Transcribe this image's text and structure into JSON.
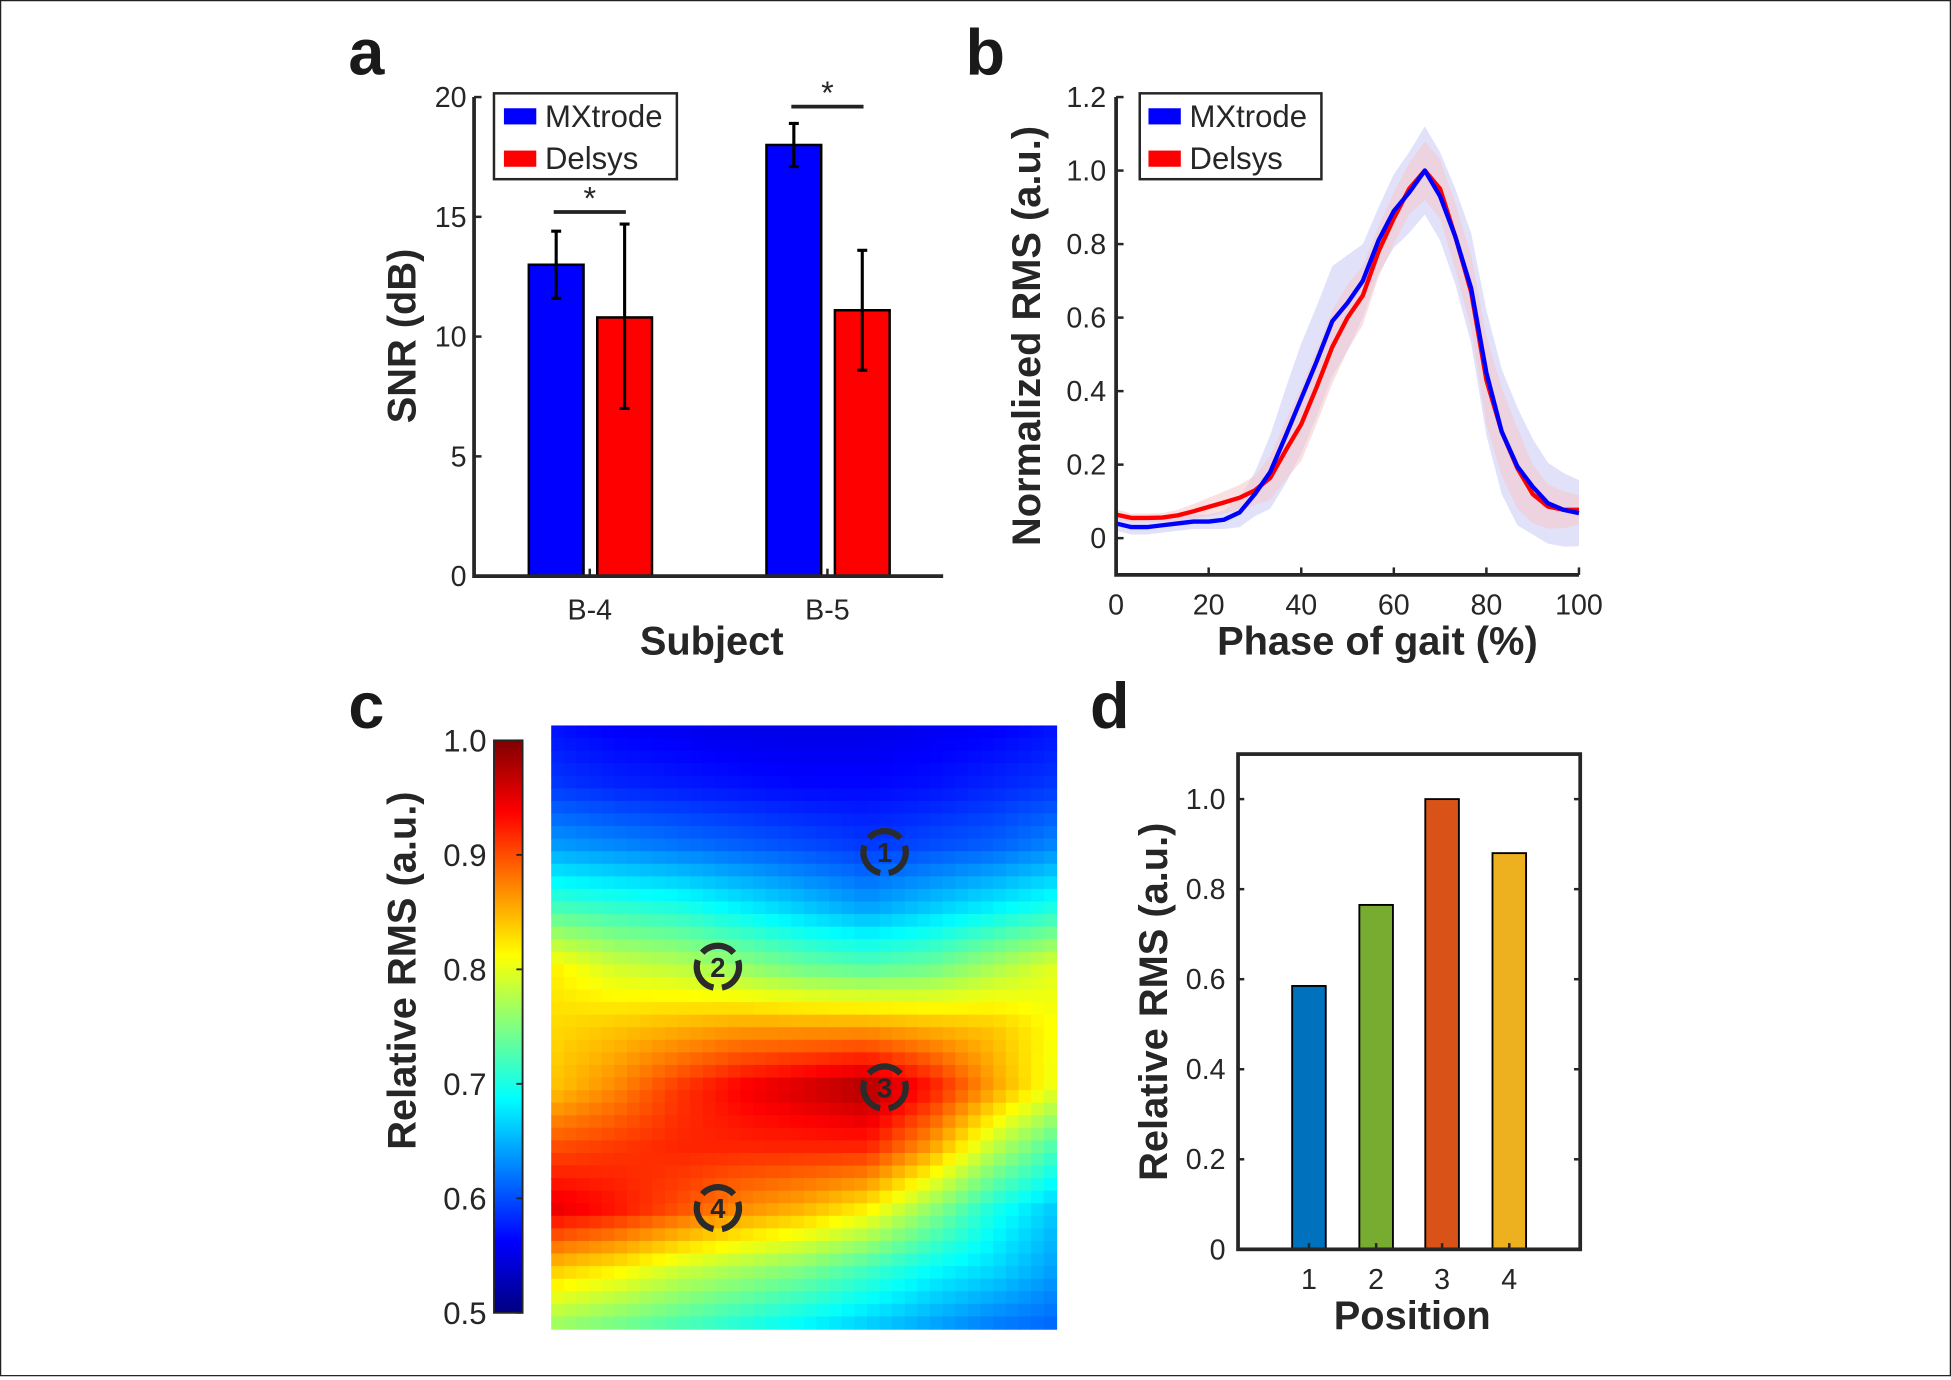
{
  "panel_labels": [
    "a",
    "b",
    "c",
    "d"
  ],
  "chart_data": [
    {
      "panel": "a",
      "type": "bar",
      "categories": [
        "B-4",
        "B-5"
      ],
      "series": [
        {
          "name": "MXtrode",
          "color": "#0000FF",
          "values": [
            13.0,
            18.0
          ],
          "err_low": [
            11.6,
            17.1
          ],
          "err_high": [
            14.4,
            18.9
          ]
        },
        {
          "name": "Delsys",
          "color": "#FF0000",
          "values": [
            10.8,
            11.1
          ],
          "err_low": [
            7.0,
            8.6
          ],
          "err_high": [
            14.7,
            13.6
          ]
        }
      ],
      "significance": [
        {
          "category": "B-4",
          "label": "*"
        },
        {
          "category": "B-5",
          "label": "*"
        }
      ],
      "xlabel": "Subject",
      "ylabel": "SNR (dB)",
      "ylim": [
        0,
        20
      ],
      "yticks": [
        0,
        5,
        10,
        15,
        20
      ],
      "ytick_labels": [
        "0",
        "5",
        "10",
        "15",
        "20"
      ],
      "legend": "top-left"
    },
    {
      "panel": "b",
      "type": "line",
      "x": [
        0,
        3.3,
        6.7,
        10,
        13.3,
        16.7,
        20,
        23.3,
        26.7,
        30,
        33.3,
        36.7,
        40,
        43.3,
        46.7,
        50,
        53.3,
        56.7,
        60,
        63.3,
        66.7,
        70,
        73.3,
        76.7,
        80,
        83.3,
        86.7,
        90,
        93.3,
        96.7,
        100
      ],
      "series": [
        {
          "name": "MXtrode",
          "color": "#0000FF",
          "band_color": "#C8C8F5",
          "values": [
            0.04,
            0.03,
            0.03,
            0.035,
            0.04,
            0.045,
            0.045,
            0.05,
            0.07,
            0.12,
            0.18,
            0.28,
            0.38,
            0.48,
            0.59,
            0.64,
            0.7,
            0.81,
            0.89,
            0.94,
            1.0,
            0.93,
            0.82,
            0.68,
            0.45,
            0.29,
            0.195,
            0.14,
            0.095,
            0.077,
            0.068
          ],
          "band_halfwidth": [
            0.02,
            0.02,
            0.02,
            0.02,
            0.02,
            0.02,
            0.02,
            0.025,
            0.04,
            0.06,
            0.1,
            0.13,
            0.15,
            0.15,
            0.15,
            0.13,
            0.1,
            0.09,
            0.1,
            0.11,
            0.12,
            0.12,
            0.13,
            0.15,
            0.17,
            0.17,
            0.16,
            0.13,
            0.11,
            0.1,
            0.09
          ]
        },
        {
          "name": "Delsys",
          "color": "#FF0000",
          "band_color": "#F5C8C8",
          "values": [
            0.064,
            0.055,
            0.055,
            0.056,
            0.062,
            0.073,
            0.085,
            0.097,
            0.11,
            0.13,
            0.164,
            0.24,
            0.31,
            0.41,
            0.52,
            0.6,
            0.66,
            0.78,
            0.87,
            0.95,
            1.0,
            0.95,
            0.82,
            0.67,
            0.43,
            0.29,
            0.19,
            0.12,
            0.086,
            0.077,
            0.077
          ],
          "band_halfwidth": [
            0.015,
            0.012,
            0.012,
            0.012,
            0.015,
            0.02,
            0.025,
            0.03,
            0.035,
            0.04,
            0.06,
            0.08,
            0.1,
            0.1,
            0.1,
            0.09,
            0.08,
            0.07,
            0.07,
            0.07,
            0.08,
            0.08,
            0.09,
            0.1,
            0.12,
            0.12,
            0.11,
            0.08,
            0.06,
            0.05,
            0.04
          ]
        }
      ],
      "xlabel": "Phase of gait (%)",
      "ylabel": "Normalized RMS (a.u.)",
      "xlim": [
        0,
        100
      ],
      "ylim": [
        -0.1,
        1.2
      ],
      "xticks": [
        0,
        20,
        40,
        60,
        80,
        100
      ],
      "xtick_labels": [
        "0",
        "20",
        "40",
        "60",
        "80",
        "100"
      ],
      "yticks": [
        0,
        0.2,
        0.4,
        0.6,
        0.8,
        1.0,
        1.2
      ],
      "ytick_labels": [
        "0",
        "0.2",
        "0.4",
        "0.6",
        "0.8",
        "1.0",
        "1.2"
      ],
      "legend": "top-left"
    },
    {
      "panel": "c",
      "type": "heatmap",
      "colormap": "jet",
      "clim": [
        0.5,
        1.0
      ],
      "colorbar_ticks": [
        0.5,
        0.6,
        0.7,
        0.8,
        0.9,
        1.0
      ],
      "colorbar_tick_labels": [
        "0.5",
        "0.6",
        "0.7",
        "0.8",
        "0.9",
        "1.0"
      ],
      "colorbar_label": "Relative RMS (a.u.)",
      "matrix": [
        [
          0.57,
          0.56,
          0.555,
          0.55,
          0.55,
          0.55,
          0.555,
          0.56,
          0.57
        ],
        [
          0.59,
          0.58,
          0.575,
          0.57,
          0.565,
          0.565,
          0.57,
          0.58,
          0.59
        ],
        [
          0.64,
          0.63,
          0.62,
          0.61,
          0.6,
          0.59,
          0.6,
          0.61,
          0.63
        ],
        [
          0.72,
          0.71,
          0.7,
          0.68,
          0.66,
          0.64,
          0.66,
          0.68,
          0.7
        ],
        [
          0.82,
          0.79,
          0.78,
          0.76,
          0.74,
          0.73,
          0.74,
          0.77,
          0.8
        ],
        [
          0.83,
          0.84,
          0.85,
          0.86,
          0.86,
          0.86,
          0.85,
          0.84,
          0.81
        ],
        [
          0.84,
          0.87,
          0.91,
          0.94,
          0.96,
          0.98,
          0.93,
          0.86,
          0.8
        ],
        [
          0.9,
          0.91,
          0.92,
          0.92,
          0.92,
          0.92,
          0.86,
          0.78,
          0.72
        ],
        [
          0.95,
          0.93,
          0.9,
          0.87,
          0.85,
          0.82,
          0.76,
          0.7,
          0.66
        ],
        [
          0.84,
          0.82,
          0.79,
          0.77,
          0.75,
          0.72,
          0.69,
          0.67,
          0.64
        ],
        [
          0.76,
          0.74,
          0.72,
          0.7,
          0.68,
          0.66,
          0.64,
          0.62,
          0.61
        ]
      ],
      "markers": [
        "1",
        "2",
        "3",
        "4"
      ]
    },
    {
      "panel": "d",
      "type": "bar",
      "categories": [
        "1",
        "2",
        "3",
        "4"
      ],
      "values": [
        0.585,
        0.765,
        1.0,
        0.88
      ],
      "colors": [
        "#0072BD",
        "#77AC30",
        "#D95319",
        "#EDB120"
      ],
      "xlabel": "Position",
      "ylabel": "Relative RMS (a.u.)",
      "ylim": [
        0,
        1.1
      ],
      "yticks": [
        0,
        0.2,
        0.4,
        0.6,
        0.8,
        1.0
      ],
      "ytick_labels": [
        "0",
        "0.2",
        "0.4",
        "0.6",
        "0.8",
        "1.0"
      ]
    }
  ]
}
